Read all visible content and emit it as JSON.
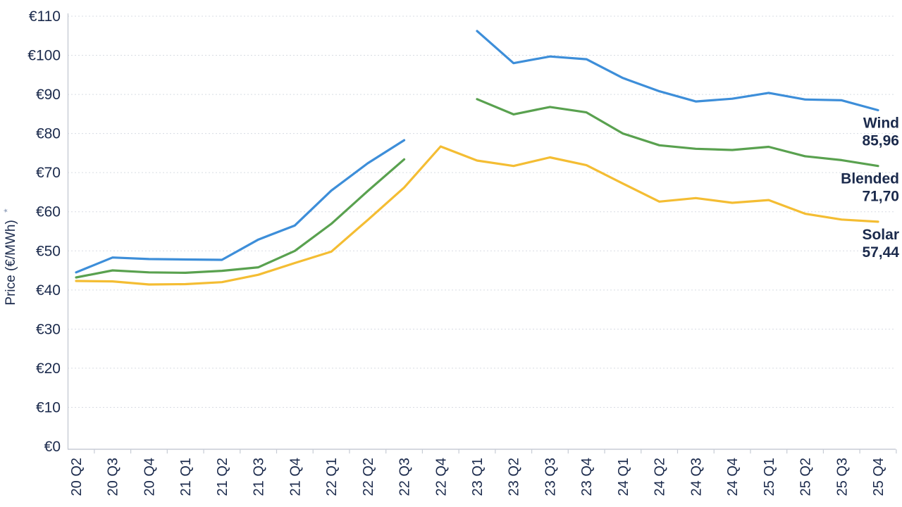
{
  "chart_data": {
    "type": "line",
    "title": "",
    "ylabel": "Price (€/MWh)",
    "ylabel_footnote_marker": "*",
    "xlabel": "",
    "ylim": [
      0,
      110
    ],
    "grid": "horizontal-dashed",
    "legend_position": "line-end-labels-right",
    "y_tick_values": [
      0,
      10,
      20,
      30,
      40,
      50,
      60,
      70,
      80,
      90,
      100,
      110
    ],
    "y_tick_labels": [
      "€0",
      "€10",
      "€20",
      "€30",
      "€40",
      "€50",
      "€60",
      "€70",
      "€80",
      "€90",
      "€100",
      "€110"
    ],
    "categories": [
      "20 Q2",
      "20 Q3",
      "20 Q4",
      "21 Q1",
      "21 Q2",
      "21 Q3",
      "21 Q4",
      "22 Q1",
      "22 Q2",
      "22 Q3",
      "22 Q4",
      "23 Q1",
      "23 Q2",
      "23 Q3",
      "23 Q4",
      "24 Q1",
      "24 Q2",
      "24 Q3",
      "24 Q4",
      "25 Q1",
      "25 Q2",
      "25 Q3",
      "25 Q4"
    ],
    "series": [
      {
        "name": "Wind",
        "color": "#3d8ed9",
        "end_label": "85,96",
        "values": [
          44.5,
          48.3,
          47.9,
          47.8,
          47.7,
          52.9,
          56.5,
          65.4,
          72.4,
          78.3,
          null,
          106.2,
          98.0,
          99.7,
          99.0,
          94.2,
          90.8,
          88.2,
          88.9,
          90.4,
          88.7,
          88.5,
          85.96
        ]
      },
      {
        "name": "Blended",
        "color": "#59a14f",
        "end_label": "71,70",
        "values": [
          43.2,
          45.0,
          44.5,
          44.4,
          44.9,
          45.8,
          50.0,
          56.9,
          65.3,
          73.4,
          null,
          88.8,
          84.9,
          86.8,
          85.4,
          80.0,
          77.0,
          76.1,
          75.8,
          76.6,
          74.2,
          73.2,
          71.7
        ]
      },
      {
        "name": "Solar",
        "color": "#f4bd33",
        "end_label": "57,44",
        "values": [
          42.3,
          42.2,
          41.4,
          41.5,
          42.0,
          43.9,
          46.9,
          49.8,
          57.9,
          66.2,
          76.7,
          73.1,
          71.7,
          73.9,
          71.9,
          67.2,
          62.6,
          63.5,
          62.3,
          63.0,
          59.5,
          58.0,
          57.44
        ]
      }
    ]
  },
  "colors": {
    "text": "#1b2a4c",
    "grid": "#d8dce3",
    "axis": "#c7ccd5",
    "footnote_marker": "#8494b2",
    "background": "#ffffff"
  }
}
